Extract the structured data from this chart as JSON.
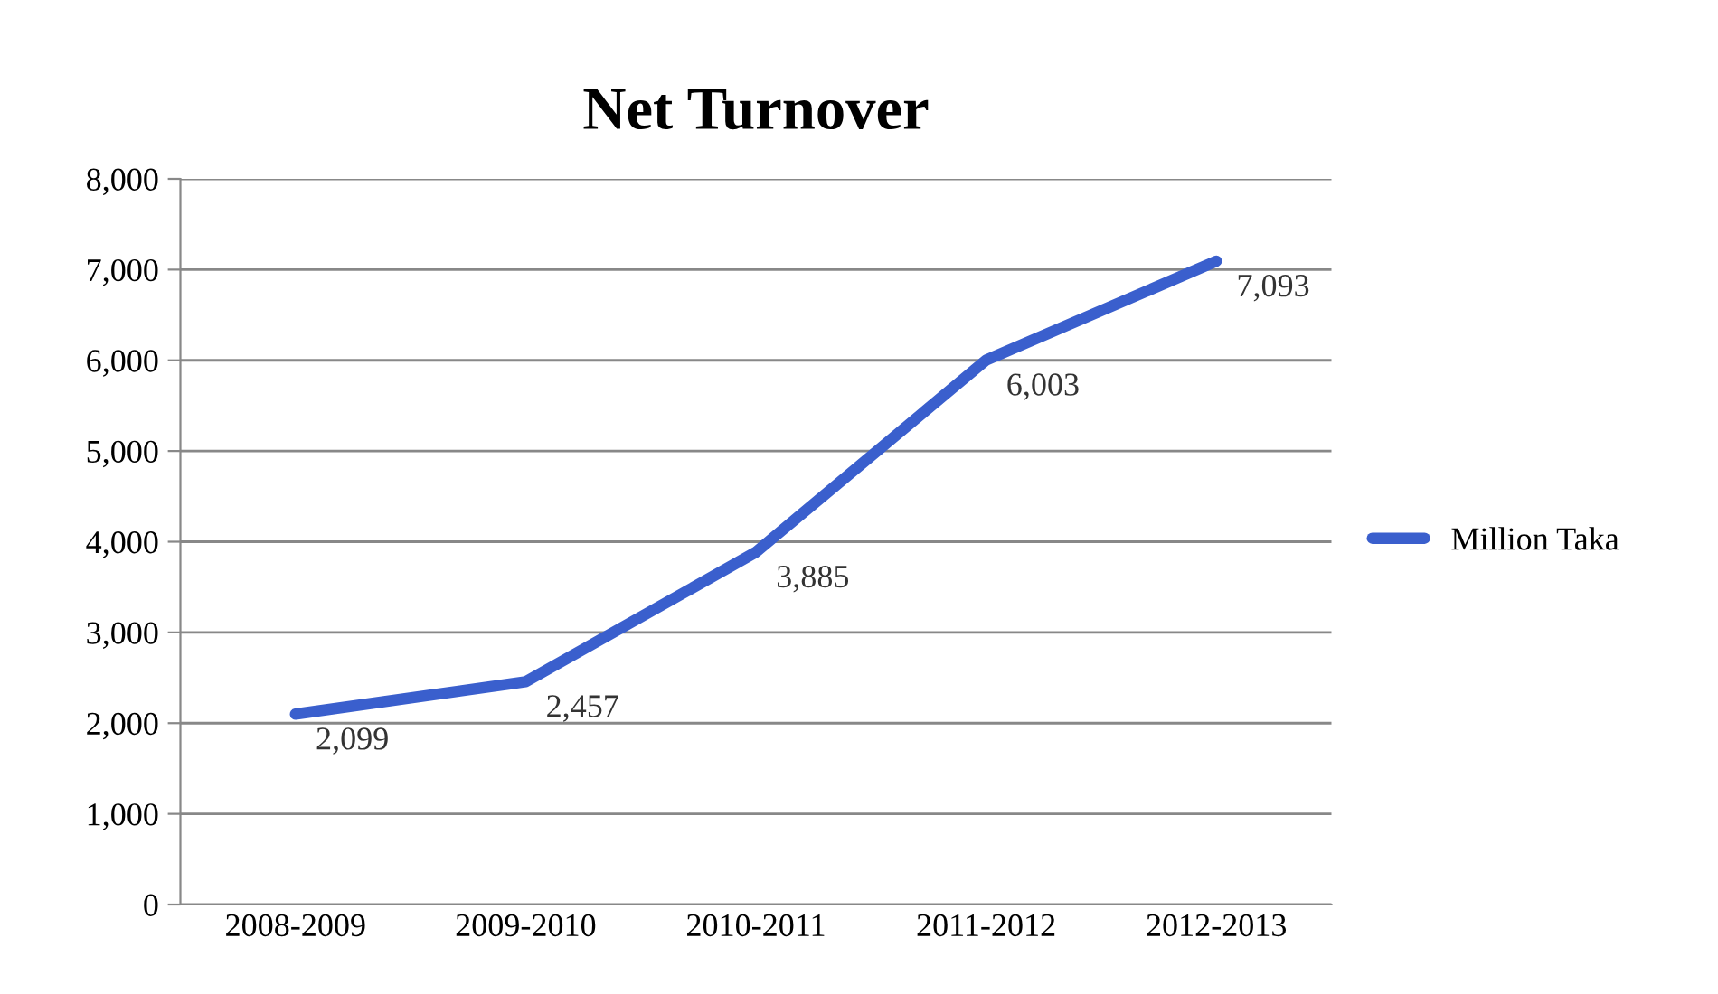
{
  "chart_data": {
    "type": "line",
    "title": "Net Turnover",
    "categories": [
      "2008-2009",
      "2009-2010",
      "2010-2011",
      "2011-2012",
      "2012-2013"
    ],
    "series": [
      {
        "name": "Million Taka",
        "color": "#3a5fcd",
        "values": [
          2099,
          2457,
          3885,
          6003,
          7093
        ],
        "value_labels": [
          "2,099",
          "2,457",
          "3,885",
          "6,003",
          "7,093"
        ]
      }
    ],
    "ylim": [
      0,
      8000
    ],
    "yticks": [
      0,
      {
        "value": 1000,
        "label": "1,000"
      },
      {
        "value": 2000,
        "label": "2,000"
      },
      {
        "value": 3000,
        "label": "3,000"
      },
      {
        "value": 4000,
        "label": "4,000"
      },
      {
        "value": 5000,
        "label": "5,000"
      },
      {
        "value": 6000,
        "label": "6,000"
      },
      {
        "value": 7000,
        "label": "7,000"
      },
      {
        "value": 8000,
        "label": "8,000"
      }
    ],
    "grid": "y",
    "legend": "right",
    "marker": "none",
    "line_style": "solid"
  }
}
